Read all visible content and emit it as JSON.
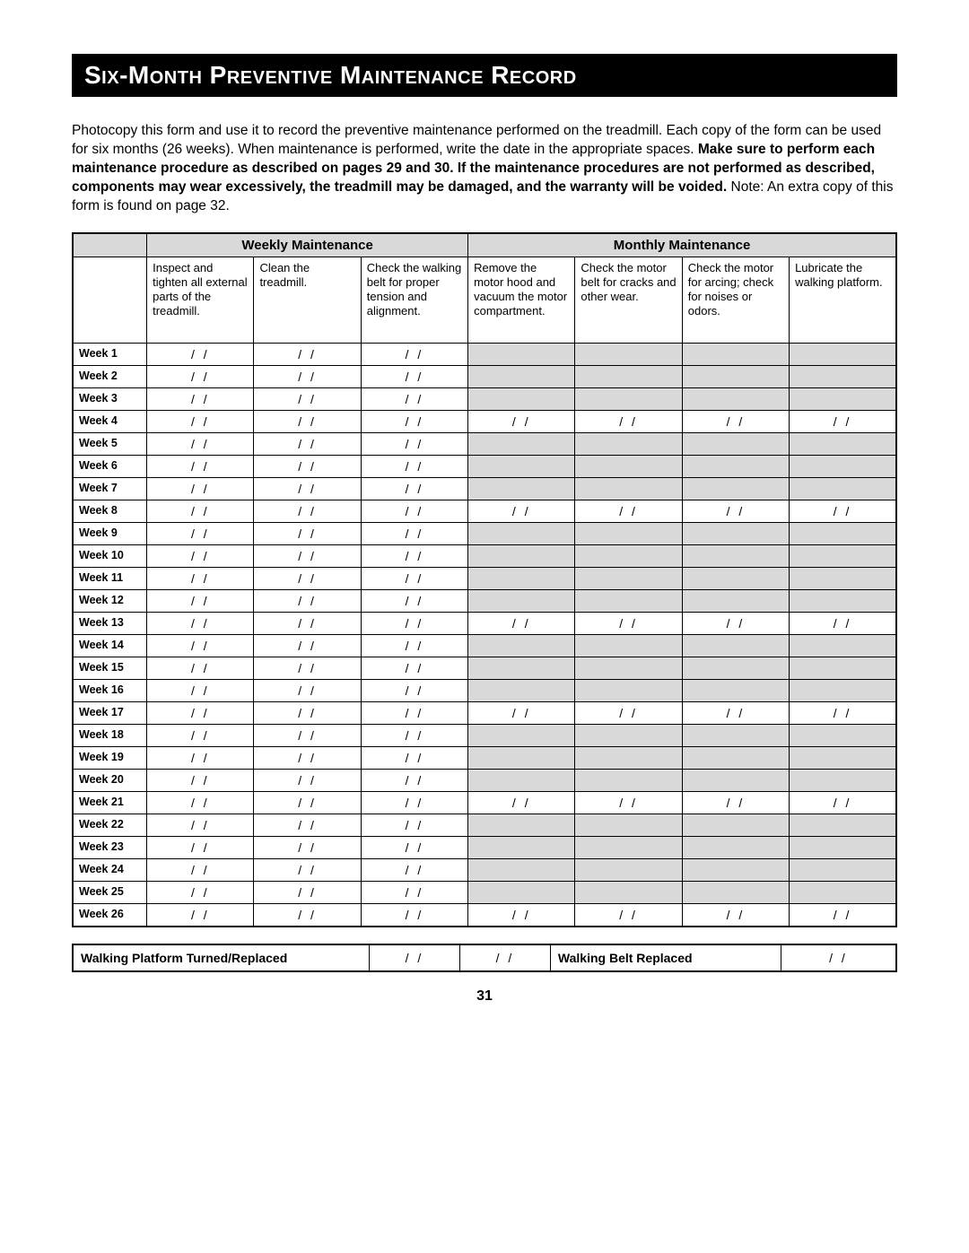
{
  "title": "Six-Month Preventive Maintenance Record",
  "intro_plain1": "Photocopy this form and use it to record the preventive maintenance performed on the treadmill. Each copy of the form can be used for six months (26 weeks). When maintenance is performed, write the date in the appropriate spaces. ",
  "intro_bold": "Make sure to perform each maintenance procedure as described on pages 29 and 30. If the maintenance procedures are not performed as described, components may wear excessively, the treadmill may be damaged, and the warranty will be voided.",
  "intro_plain2": " Note: An extra copy of this form is found on page 32.",
  "headers": {
    "weekly": "Weekly Maintenance",
    "monthly": "Monthly Maintenance"
  },
  "tasks": {
    "t1": "Inspect and tighten all external parts of the treadmill.",
    "t2": "Clean the treadmill.",
    "t3": "Check the walking belt for proper tension and alignment.",
    "t4": "Remove the motor hood and vacuum the motor compartment.",
    "t5": "Check the motor belt for cracks and other wear.",
    "t6": "Check the motor for arcing; check for noises or odors.",
    "t7": "Lubricate the walking platform."
  },
  "date_placeholder": "/     /",
  "weeks": [
    {
      "label": "Week 1",
      "monthly": false
    },
    {
      "label": "Week 2",
      "monthly": false
    },
    {
      "label": "Week 3",
      "monthly": false
    },
    {
      "label": "Week 4",
      "monthly": true
    },
    {
      "label": "Week 5",
      "monthly": false
    },
    {
      "label": "Week 6",
      "monthly": false
    },
    {
      "label": "Week 7",
      "monthly": false
    },
    {
      "label": "Week 8",
      "monthly": true
    },
    {
      "label": "Week 9",
      "monthly": false
    },
    {
      "label": "Week 10",
      "monthly": false
    },
    {
      "label": "Week 11",
      "monthly": false
    },
    {
      "label": "Week 12",
      "monthly": false
    },
    {
      "label": "Week 13",
      "monthly": true
    },
    {
      "label": "Week 14",
      "monthly": false
    },
    {
      "label": "Week 15",
      "monthly": false
    },
    {
      "label": "Week 16",
      "monthly": false
    },
    {
      "label": "Week 17",
      "monthly": true
    },
    {
      "label": "Week 18",
      "monthly": false
    },
    {
      "label": "Week 19",
      "monthly": false
    },
    {
      "label": "Week 20",
      "monthly": false
    },
    {
      "label": "Week 21",
      "monthly": true
    },
    {
      "label": "Week 22",
      "monthly": false
    },
    {
      "label": "Week 23",
      "monthly": false
    },
    {
      "label": "Week 24",
      "monthly": false
    },
    {
      "label": "Week 25",
      "monthly": false
    },
    {
      "label": "Week 26",
      "monthly": true
    }
  ],
  "footer": {
    "platform_label": "Walking Platform Turned/Replaced",
    "belt_label": "Walking Belt Replaced"
  },
  "page_number": "31",
  "style": {
    "colors": {
      "bg": "#ffffff",
      "text": "#000000",
      "title_bg": "#000000",
      "title_fg": "#ffffff",
      "shade": "#d9d9d9",
      "border": "#000000"
    },
    "fontsizes": {
      "title": 28,
      "intro": 15.5,
      "table": 13.5,
      "header": 15,
      "task": 13,
      "weeklabel": 12.5,
      "footer": 14,
      "pagenum": 16
    },
    "col_widths_pct": [
      9,
      13,
      13,
      13,
      13,
      13,
      13,
      13
    ]
  }
}
